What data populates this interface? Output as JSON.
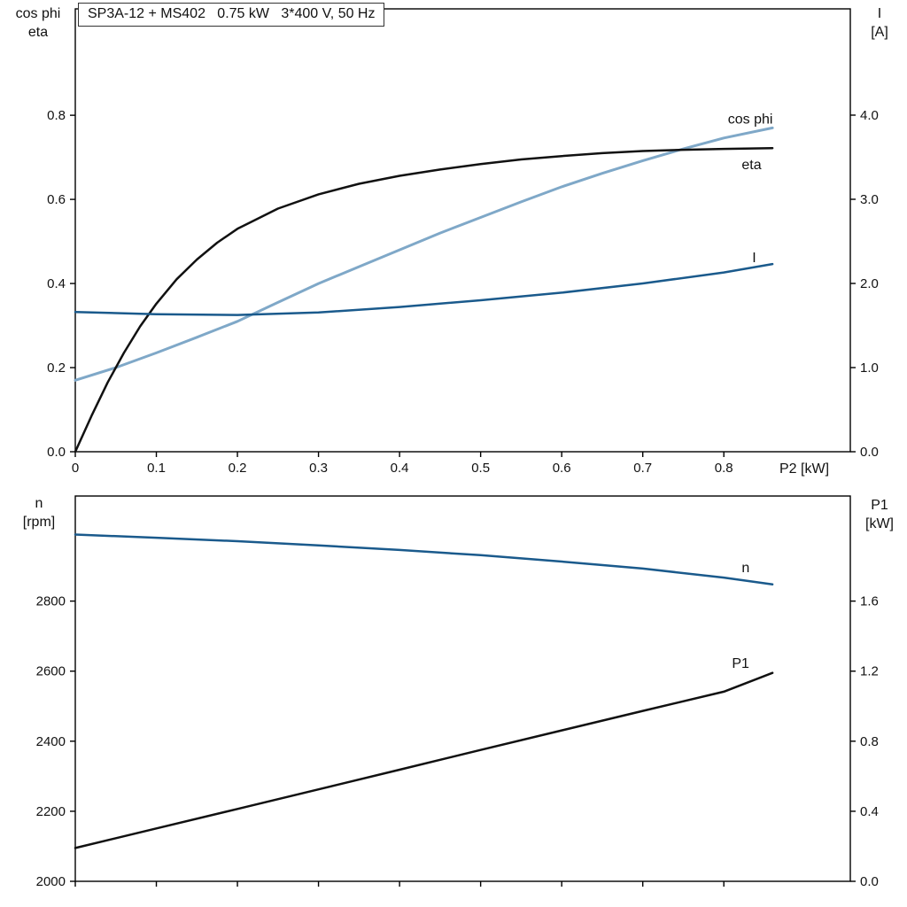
{
  "title_box": "SP3A-12 + MS402   0.75 kW   3*400 V, 50 Hz",
  "axis_corner_labels": {
    "top_left": [
      "cos phi",
      "eta"
    ],
    "top_right": [
      "I",
      "[A]"
    ],
    "bottom_left": [
      "n",
      "[rpm]"
    ],
    "bottom_right": [
      "P1",
      "[kW]"
    ]
  },
  "colors": {
    "black_curve": "#111111",
    "dark_blue_curve": "#1a5a8c",
    "light_blue_curve": "#7fa8c8",
    "axis": "#000000",
    "background": "#ffffff"
  },
  "chart_data": [
    {
      "id": "top",
      "type": "line",
      "title": "SP3A-12 + MS402   0.75 kW   3*400 V, 50 Hz",
      "grid": false,
      "x_axis": {
        "label": "P2 [kW]",
        "range": [
          0,
          0.956
        ],
        "ticks": [
          {
            "value": 0,
            "label": "0"
          },
          {
            "value": 0.1,
            "label": "0.1"
          },
          {
            "value": 0.2,
            "label": "0.2"
          },
          {
            "value": 0.3,
            "label": "0.3"
          },
          {
            "value": 0.4,
            "label": "0.4"
          },
          {
            "value": 0.5,
            "label": "0.5"
          },
          {
            "value": 0.6,
            "label": "0.6"
          },
          {
            "value": 0.7,
            "label": "0.7"
          },
          {
            "value": 0.8,
            "label": "0.8"
          }
        ]
      },
      "left_axis": {
        "title": "cos phi / eta",
        "range": [
          0,
          1.053
        ],
        "ticks": [
          {
            "value": 0.0,
            "label": "0.0"
          },
          {
            "value": 0.2,
            "label": "0.2"
          },
          {
            "value": 0.4,
            "label": "0.4"
          },
          {
            "value": 0.6,
            "label": "0.6"
          },
          {
            "value": 0.8,
            "label": "0.8"
          }
        ]
      },
      "right_axis": {
        "title": "I [A]",
        "range": [
          0,
          5.263
        ],
        "ticks": [
          {
            "value": 0,
            "label": "0.0"
          },
          {
            "value": 1,
            "label": "1.0"
          },
          {
            "value": 2,
            "label": "2.0"
          },
          {
            "value": 3,
            "label": "3.0"
          },
          {
            "value": 4,
            "label": "4.0"
          }
        ]
      },
      "series": [
        {
          "key": "cos-phi",
          "name": "cos phi",
          "axis": "left",
          "color": "#7fa8c8",
          "width": 3,
          "label": {
            "text": "cos phi",
            "x": 0.805,
            "y": 0.78
          },
          "x": [
            0,
            0.05,
            0.1,
            0.15,
            0.2,
            0.25,
            0.3,
            0.35,
            0.4,
            0.45,
            0.5,
            0.55,
            0.6,
            0.65,
            0.7,
            0.75,
            0.8,
            0.86
          ],
          "y": [
            0.17,
            0.2,
            0.235,
            0.272,
            0.31,
            0.355,
            0.4,
            0.44,
            0.48,
            0.52,
            0.557,
            0.594,
            0.63,
            0.662,
            0.692,
            0.72,
            0.746,
            0.77
          ]
        },
        {
          "key": "eta",
          "name": "eta",
          "axis": "left",
          "color": "#111111",
          "width": 2.5,
          "label": {
            "text": "eta",
            "x": 0.822,
            "y": 0.672
          },
          "x": [
            0,
            0.02,
            0.04,
            0.06,
            0.08,
            0.1,
            0.125,
            0.15,
            0.175,
            0.2,
            0.25,
            0.3,
            0.35,
            0.4,
            0.45,
            0.5,
            0.55,
            0.6,
            0.65,
            0.7,
            0.75,
            0.8,
            0.86
          ],
          "y": [
            0,
            0.085,
            0.165,
            0.235,
            0.298,
            0.352,
            0.41,
            0.457,
            0.497,
            0.53,
            0.578,
            0.612,
            0.637,
            0.656,
            0.671,
            0.684,
            0.695,
            0.703,
            0.71,
            0.715,
            0.718,
            0.72,
            0.722
          ]
        },
        {
          "key": "current",
          "name": "I",
          "axis": "right",
          "color": "#1a5a8c",
          "width": 2.5,
          "label": {
            "text": "I",
            "x": 0.835,
            "y": 2.25
          },
          "x": [
            0,
            0.1,
            0.2,
            0.3,
            0.4,
            0.5,
            0.6,
            0.7,
            0.8,
            0.86
          ],
          "y": [
            1.66,
            1.635,
            1.625,
            1.655,
            1.72,
            1.8,
            1.89,
            2.0,
            2.13,
            2.23
          ]
        }
      ]
    },
    {
      "id": "bottom",
      "type": "line",
      "title": "",
      "grid": false,
      "x_axis": {
        "label": "",
        "range": [
          0,
          0.956
        ],
        "ticks": [
          {
            "value": 0,
            "label": ""
          },
          {
            "value": 0.1,
            "label": ""
          },
          {
            "value": 0.2,
            "label": ""
          },
          {
            "value": 0.3,
            "label": ""
          },
          {
            "value": 0.4,
            "label": ""
          },
          {
            "value": 0.5,
            "label": ""
          },
          {
            "value": 0.6,
            "label": ""
          },
          {
            "value": 0.7,
            "label": ""
          },
          {
            "value": 0.8,
            "label": ""
          }
        ]
      },
      "left_axis": {
        "title": "n [rpm]",
        "range": [
          2000,
          3100
        ],
        "ticks": [
          {
            "value": 2000,
            "label": "2000"
          },
          {
            "value": 2200,
            "label": "2200"
          },
          {
            "value": 2400,
            "label": "2400"
          },
          {
            "value": 2600,
            "label": "2600"
          },
          {
            "value": 2800,
            "label": "2800"
          }
        ]
      },
      "right_axis": {
        "title": "P1 [kW]",
        "range": [
          0,
          2.2
        ],
        "ticks": [
          {
            "value": 0,
            "label": "0.0"
          },
          {
            "value": 0.4,
            "label": "0.4"
          },
          {
            "value": 0.8,
            "label": "0.8"
          },
          {
            "value": 1.2,
            "label": "1.2"
          },
          {
            "value": 1.6,
            "label": "1.6"
          }
        ]
      },
      "series": [
        {
          "key": "speed",
          "name": "n",
          "axis": "left",
          "color": "#1a5a8c",
          "width": 2.5,
          "label": {
            "text": "n",
            "x": 0.822,
            "y": 2883
          },
          "x": [
            0,
            0.1,
            0.2,
            0.3,
            0.4,
            0.5,
            0.6,
            0.7,
            0.8,
            0.86
          ],
          "y": [
            2990,
            2981,
            2971,
            2959,
            2946,
            2931,
            2913,
            2893,
            2867,
            2848
          ]
        },
        {
          "key": "p1",
          "name": "P1",
          "axis": "right",
          "color": "#111111",
          "width": 2.5,
          "label": {
            "text": "P1",
            "x": 0.81,
            "y": 1.22
          },
          "x": [
            0,
            0.1,
            0.2,
            0.3,
            0.4,
            0.5,
            0.6,
            0.7,
            0.8,
            0.86
          ],
          "y": [
            0.19,
            0.302,
            0.413,
            0.525,
            0.637,
            0.75,
            0.862,
            0.973,
            1.083,
            1.19
          ]
        }
      ]
    }
  ]
}
